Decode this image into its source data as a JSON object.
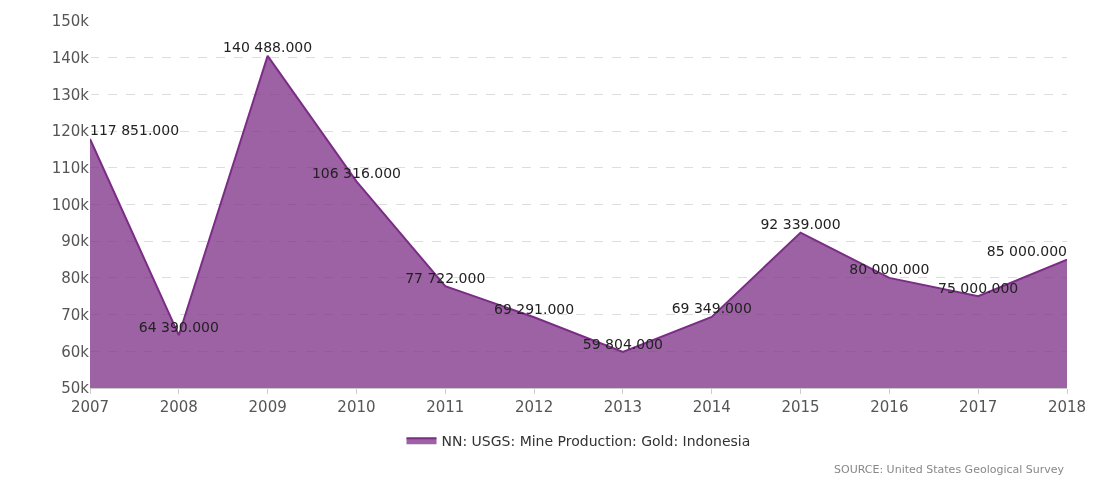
{
  "chart_data": {
    "type": "area",
    "categories": [
      "2007",
      "2008",
      "2009",
      "2010",
      "2011",
      "2012",
      "2013",
      "2014",
      "2015",
      "2016",
      "2017",
      "2018"
    ],
    "series": [
      {
        "name": "NN: USGS: Mine Production: Gold: Indonesia",
        "color": "#7b2d86",
        "values": [
          117851,
          64390,
          140488,
          106316,
          77722,
          69291,
          59804,
          69349,
          92339,
          80000,
          75000,
          85000
        ],
        "value_labels": [
          "117 851.000",
          "64 390.000",
          "140 488.000",
          "106 316.000",
          "77 722.000",
          "69 291.000",
          "59 804.000",
          "69 349.000",
          "92 339.000",
          "80 000.000",
          "75 000.000",
          "85 000.000"
        ]
      }
    ],
    "ylim": [
      50000,
      150000
    ],
    "yticks": [
      {
        "value": 50000,
        "label": "50k"
      },
      {
        "value": 60000,
        "label": "60k"
      },
      {
        "value": 70000,
        "label": "70k"
      },
      {
        "value": 80000,
        "label": "80k"
      },
      {
        "value": 90000,
        "label": "90k"
      },
      {
        "value": 100000,
        "label": "100k"
      },
      {
        "value": 110000,
        "label": "110k"
      },
      {
        "value": 120000,
        "label": "120k"
      },
      {
        "value": 130000,
        "label": "130k"
      },
      {
        "value": 140000,
        "label": "140k"
      },
      {
        "value": 150000,
        "label": "150k"
      }
    ],
    "grid": "y",
    "legend": "bottom",
    "annotations": [
      "SOURCE: United States Geological Survey"
    ]
  }
}
